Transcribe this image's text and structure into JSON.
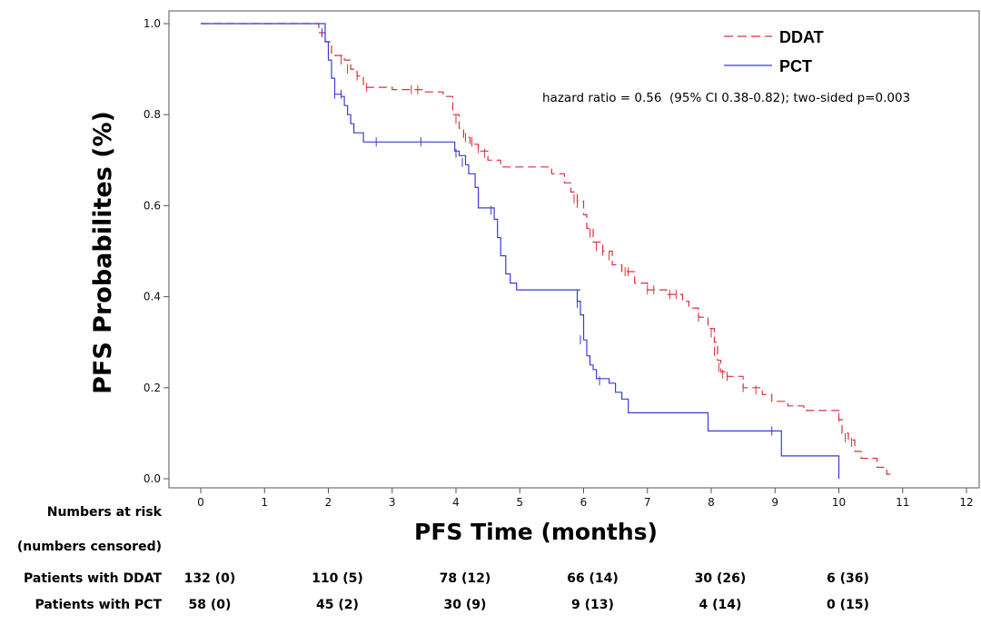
{
  "chart_data": {
    "type": "line",
    "title": "",
    "xlabel": "PFS Time (months)",
    "ylabel": "PFS Probabilites (%)",
    "xlim": [
      0,
      12
    ],
    "ylim": [
      0,
      1
    ],
    "x_ticks": [
      0,
      1,
      2,
      3,
      4,
      5,
      6,
      7,
      8,
      9,
      10,
      11,
      12
    ],
    "y_ticks": [
      "0.0",
      "0.2",
      "0.4",
      "0.6",
      "0.8",
      "1.0"
    ],
    "y_tick_values": [
      0,
      0.2,
      0.4,
      0.6,
      0.8,
      1.0
    ],
    "grid": false,
    "legend_position": "top-right",
    "annotation": "hazard ratio = 0.56  (95% CI 0.38-0.82); two-sided p=0.003",
    "series": [
      {
        "name": "DDAT",
        "color": "#d9313a",
        "style": "dashed",
        "points": [
          [
            0,
            1.0
          ],
          [
            1.75,
            1.0
          ],
          [
            1.85,
            0.98
          ],
          [
            1.95,
            0.96
          ],
          [
            2.05,
            0.93
          ],
          [
            2.25,
            0.92
          ],
          [
            2.35,
            0.9
          ],
          [
            2.45,
            0.885
          ],
          [
            2.55,
            0.86
          ],
          [
            3.0,
            0.855
          ],
          [
            3.5,
            0.85
          ],
          [
            3.8,
            0.84
          ],
          [
            3.95,
            0.8
          ],
          [
            4.05,
            0.77
          ],
          [
            4.12,
            0.75
          ],
          [
            4.22,
            0.735
          ],
          [
            4.35,
            0.72
          ],
          [
            4.5,
            0.7
          ],
          [
            4.7,
            0.685
          ],
          [
            5.3,
            0.685
          ],
          [
            5.5,
            0.67
          ],
          [
            5.7,
            0.65
          ],
          [
            5.8,
            0.63
          ],
          [
            5.9,
            0.61
          ],
          [
            6.0,
            0.58
          ],
          [
            6.05,
            0.55
          ],
          [
            6.15,
            0.52
          ],
          [
            6.3,
            0.5
          ],
          [
            6.45,
            0.47
          ],
          [
            6.6,
            0.455
          ],
          [
            6.8,
            0.43
          ],
          [
            7.0,
            0.415
          ],
          [
            7.3,
            0.405
          ],
          [
            7.55,
            0.39
          ],
          [
            7.65,
            0.375
          ],
          [
            7.8,
            0.355
          ],
          [
            7.95,
            0.33
          ],
          [
            8.05,
            0.3
          ],
          [
            8.1,
            0.26
          ],
          [
            8.15,
            0.235
          ],
          [
            8.25,
            0.225
          ],
          [
            8.5,
            0.2
          ],
          [
            8.8,
            0.185
          ],
          [
            8.95,
            0.17
          ],
          [
            9.2,
            0.16
          ],
          [
            9.45,
            0.15
          ],
          [
            9.9,
            0.15
          ],
          [
            10.0,
            0.13
          ],
          [
            10.05,
            0.1
          ],
          [
            10.15,
            0.085
          ],
          [
            10.25,
            0.06
          ],
          [
            10.35,
            0.045
          ],
          [
            10.6,
            0.025
          ],
          [
            10.75,
            0.01
          ],
          [
            10.8,
            0.0
          ]
        ],
        "censor_x": [
          2.2,
          2.3,
          2.45,
          2.6,
          3.3,
          3.4,
          4.0,
          4.15,
          4.25,
          4.35,
          4.45,
          5.85,
          5.9,
          6.1,
          6.2,
          6.3,
          6.4,
          6.65,
          6.7,
          7.0,
          7.1,
          7.35,
          7.45,
          7.8,
          8.0,
          8.05,
          8.12,
          8.18,
          8.25,
          8.5,
          8.7,
          10.0,
          10.1,
          10.2
        ],
        "censor_y": [
          0.92,
          0.9,
          0.885,
          0.86,
          0.855,
          0.855,
          0.79,
          0.75,
          0.74,
          0.725,
          0.715,
          0.615,
          0.605,
          0.54,
          0.51,
          0.5,
          0.49,
          0.455,
          0.455,
          0.415,
          0.415,
          0.405,
          0.405,
          0.355,
          0.32,
          0.28,
          0.245,
          0.23,
          0.225,
          0.2,
          0.195,
          0.135,
          0.09,
          0.08
        ]
      },
      {
        "name": "PCT",
        "color": "#3b3bd4",
        "style": "solid",
        "points": [
          [
            0,
            1.0
          ],
          [
            1.7,
            1.0
          ],
          [
            1.95,
            0.96
          ],
          [
            2.0,
            0.92
          ],
          [
            2.05,
            0.88
          ],
          [
            2.1,
            0.845
          ],
          [
            2.2,
            0.84
          ],
          [
            2.25,
            0.82
          ],
          [
            2.3,
            0.8
          ],
          [
            2.35,
            0.78
          ],
          [
            2.4,
            0.76
          ],
          [
            2.55,
            0.74
          ],
          [
            3.95,
            0.74
          ],
          [
            3.98,
            0.72
          ],
          [
            4.05,
            0.71
          ],
          [
            4.15,
            0.69
          ],
          [
            4.2,
            0.67
          ],
          [
            4.3,
            0.64
          ],
          [
            4.35,
            0.595
          ],
          [
            4.6,
            0.57
          ],
          [
            4.65,
            0.53
          ],
          [
            4.7,
            0.49
          ],
          [
            4.78,
            0.45
          ],
          [
            4.85,
            0.43
          ],
          [
            4.95,
            0.415
          ],
          [
            5.95,
            0.415
          ],
          [
            5.9,
            0.39
          ],
          [
            5.95,
            0.36
          ],
          [
            6.0,
            0.305
          ],
          [
            6.05,
            0.27
          ],
          [
            6.1,
            0.25
          ],
          [
            6.15,
            0.24
          ],
          [
            6.2,
            0.22
          ],
          [
            6.4,
            0.21
          ],
          [
            6.5,
            0.19
          ],
          [
            6.6,
            0.175
          ],
          [
            6.7,
            0.145
          ],
          [
            7.0,
            0.145
          ],
          [
            7.85,
            0.145
          ],
          [
            7.95,
            0.105
          ],
          [
            8.1,
            0.105
          ],
          [
            8.2,
            0.105
          ],
          [
            9.05,
            0.105
          ],
          [
            9.1,
            0.05
          ],
          [
            10.0,
            0.05
          ],
          [
            10.0,
            0.0
          ]
        ],
        "censor_x": [
          1.9,
          2.1,
          2.2,
          2.75,
          3.45,
          4.0,
          4.1,
          4.55,
          5.9,
          5.95,
          6.25,
          8.95
        ],
        "censor_y": [
          0.98,
          0.845,
          0.845,
          0.74,
          0.74,
          0.715,
          0.695,
          0.59,
          0.385,
          0.305,
          0.215,
          0.105
        ]
      }
    ]
  },
  "risk_table": {
    "title_line1": "Numbers at risk",
    "title_line2": "(numbers censored)",
    "rows": [
      {
        "label": "Patients with DDAT",
        "values": [
          "132 (0)",
          "110 (5)",
          "78 (12)",
          "66 (14)",
          "30 (26)",
          "6 (36)"
        ]
      },
      {
        "label": "Patients with PCT",
        "values": [
          "58 (0)",
          "45 (2)",
          "30 (9)",
          "9 (13)",
          "4 (14)",
          "0 (15)"
        ]
      }
    ],
    "time_points": [
      0,
      2,
      4,
      6,
      8,
      10
    ]
  }
}
